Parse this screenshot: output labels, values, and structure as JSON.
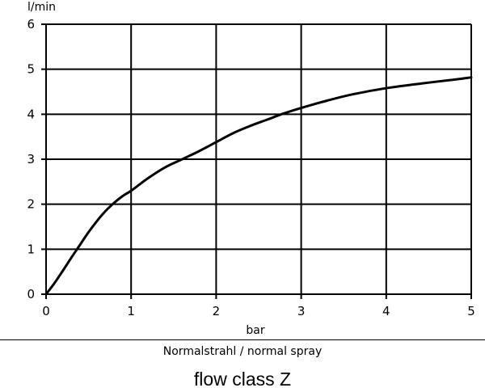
{
  "chart_data": {
    "type": "line",
    "xlabel": "bar",
    "ylabel": "l/min",
    "xlim": [
      0,
      5
    ],
    "ylim": [
      0,
      6
    ],
    "x_ticks": [
      "0",
      "1",
      "2",
      "3",
      "4",
      "5"
    ],
    "y_ticks": [
      "0",
      "1",
      "2",
      "3",
      "4",
      "5",
      "6"
    ],
    "grid": true,
    "series": [
      {
        "x": [
          0,
          0.1,
          0.2,
          0.3,
          0.4,
          0.5,
          0.6,
          0.7,
          0.8,
          0.9,
          1.0,
          1.2,
          1.4,
          1.6,
          1.8,
          2.0,
          2.2,
          2.4,
          2.6,
          2.8,
          3.0,
          3.3,
          3.6,
          4.0,
          4.4,
          4.8,
          5.0
        ],
        "y": [
          0,
          0.25,
          0.53,
          0.82,
          1.1,
          1.38,
          1.63,
          1.85,
          2.03,
          2.18,
          2.3,
          2.58,
          2.82,
          3.0,
          3.18,
          3.38,
          3.58,
          3.74,
          3.88,
          4.02,
          4.14,
          4.3,
          4.44,
          4.58,
          4.68,
          4.77,
          4.82
        ],
        "color": "#000000"
      }
    ]
  },
  "captions": {
    "subtitle": "Normalstrahl / normal spray",
    "flow_class": "flow class Z"
  }
}
